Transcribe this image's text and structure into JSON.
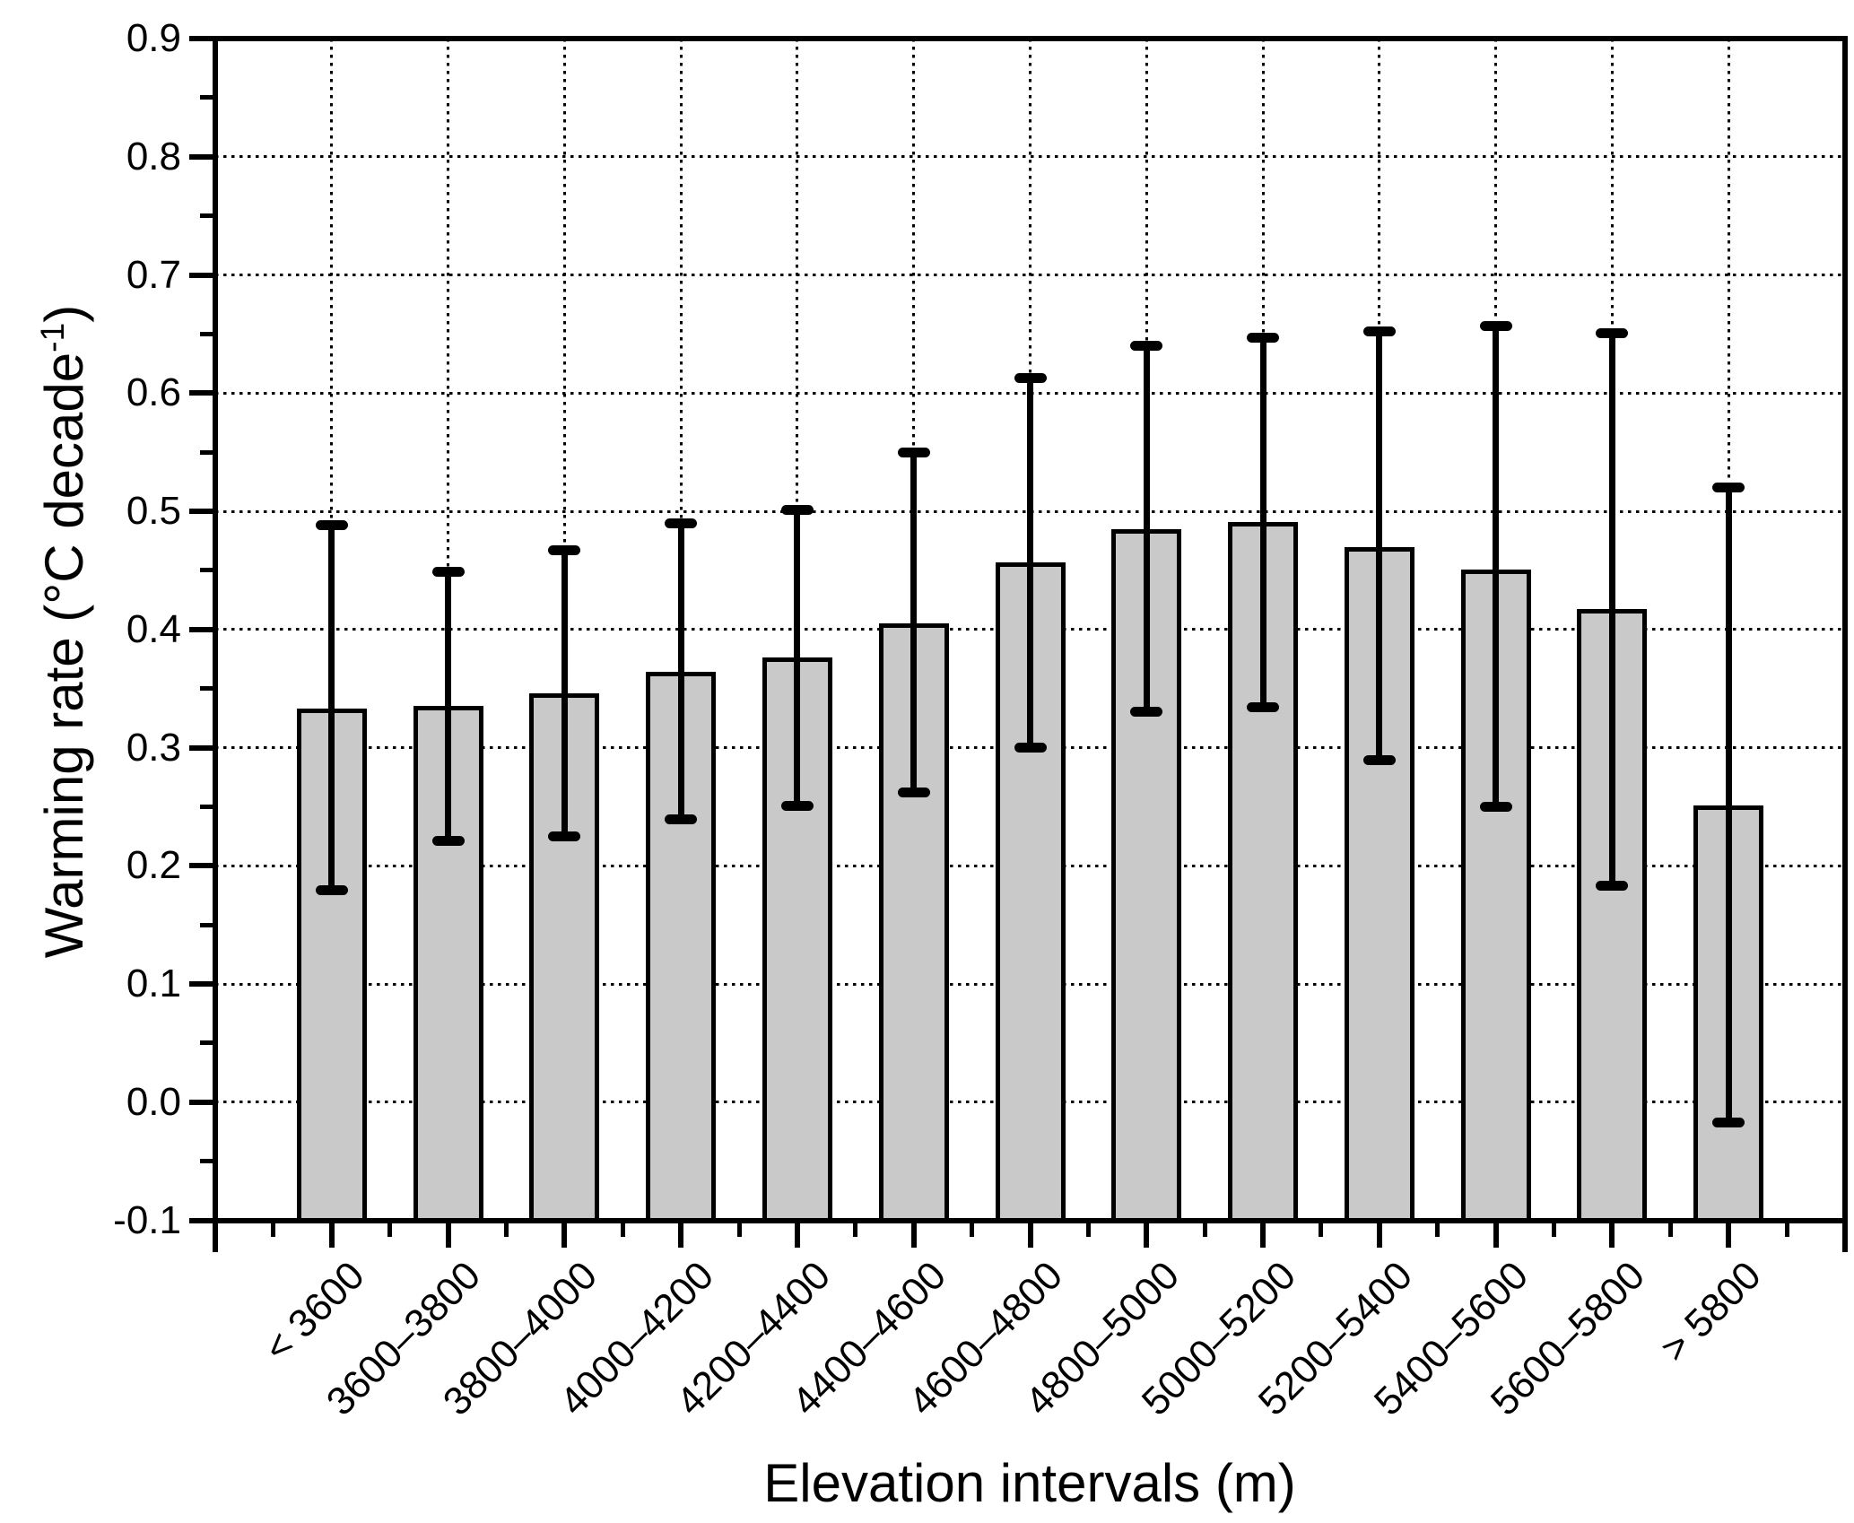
{
  "figure": {
    "xlabel": "Elevation intervals (m)",
    "ylabel_main": "Warming rate (°C decade",
    "ylabel_sup": "-1",
    "ylabel_close": ")"
  },
  "chart_data": {
    "type": "bar",
    "title": "",
    "xlabel": "Elevation intervals (m)",
    "ylabel": "Warming rate (°C decade⁻¹)",
    "categories": [
      "< 3600",
      "3600–3800",
      "3800–4000",
      "4000–4200",
      "4200–4400",
      "4400–4600",
      "4600–4800",
      "4800–5000",
      "5000–5200",
      "5200–5400",
      "5400–5600",
      "5600–5800",
      "> 5800"
    ],
    "series": [
      {
        "name": "Warming rate",
        "values": [
          0.333,
          0.335,
          0.346,
          0.364,
          0.376,
          0.405,
          0.457,
          0.485,
          0.491,
          0.47,
          0.451,
          0.417,
          0.251
        ]
      }
    ],
    "error_low": [
      0.179,
      0.221,
      0.225,
      0.239,
      0.251,
      0.262,
      0.3,
      0.33,
      0.334,
      0.289,
      0.25,
      0.183,
      -0.017
    ],
    "error_high": [
      0.488,
      0.449,
      0.467,
      0.49,
      0.501,
      0.55,
      0.613,
      0.64,
      0.647,
      0.652,
      0.657,
      0.651,
      0.52
    ],
    "ylim": [
      -0.1,
      0.9
    ],
    "ytick_interval": 0.1,
    "ytick_minor_interval": 0.05,
    "ytick_labels": [
      "0.9",
      "0.8",
      "0.7",
      "0.6",
      "0.5",
      "0.4",
      "0.3",
      "0.2",
      "0.1",
      "0.0",
      "-0.1"
    ],
    "grid": {
      "horizontal": true,
      "vertical": true,
      "style": "dotted"
    },
    "legend": "none",
    "bar_width_fraction": 0.6,
    "colors": {
      "bar_fill": "#c9c9c9",
      "bar_edge": "#000000",
      "error_bar": "#000000",
      "grid": "#000000",
      "background": "#ffffff"
    }
  }
}
